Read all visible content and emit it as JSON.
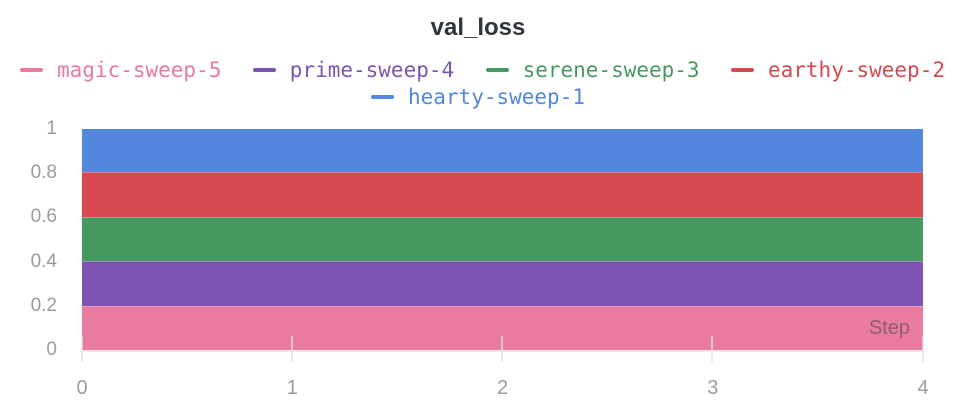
{
  "title": "val_loss",
  "legend": {
    "rows": [
      [
        {
          "label": "magic-sweep-5",
          "color": "#E87B9F"
        },
        {
          "label": "prime-sweep-4",
          "color": "#7D54B2"
        },
        {
          "label": "serene-sweep-3",
          "color": "#479A5F"
        },
        {
          "label": "earthy-sweep-2",
          "color": "#D5494F"
        }
      ],
      [
        {
          "label": "hearty-sweep-1",
          "color": "#5387DD"
        }
      ]
    ]
  },
  "chart_data": {
    "type": "area",
    "stacked": true,
    "title": "val_loss",
    "xlabel": "Step",
    "ylabel": "",
    "x_range": [
      0,
      4
    ],
    "ylim": [
      0,
      1
    ],
    "grid": false,
    "legend_position": "top",
    "x": [
      0,
      1,
      2,
      3,
      4
    ],
    "series": [
      {
        "name": "hearty-sweep-1",
        "color": "#5387DD",
        "values": [
          0.2,
          0.2,
          0.2,
          0.2,
          0.2
        ],
        "stacked_band": [
          0.8,
          1.0
        ]
      },
      {
        "name": "earthy-sweep-2",
        "color": "#D5494F",
        "values": [
          0.2,
          0.2,
          0.2,
          0.2,
          0.2
        ],
        "stacked_band": [
          0.6,
          0.8
        ]
      },
      {
        "name": "serene-sweep-3",
        "color": "#479A5F",
        "values": [
          0.2,
          0.2,
          0.2,
          0.2,
          0.2
        ],
        "stacked_band": [
          0.4,
          0.6
        ]
      },
      {
        "name": "prime-sweep-4",
        "color": "#7D54B2",
        "values": [
          0.2,
          0.2,
          0.2,
          0.2,
          0.2
        ],
        "stacked_band": [
          0.2,
          0.4
        ]
      },
      {
        "name": "magic-sweep-5",
        "color": "#E87B9F",
        "values": [
          0.2,
          0.2,
          0.2,
          0.2,
          0.2
        ],
        "stacked_band": [
          0.0,
          0.2
        ]
      }
    ],
    "y_ticks": [
      {
        "value": 1,
        "label": "1"
      },
      {
        "value": 0.8,
        "label": "0.8"
      },
      {
        "value": 0.6,
        "label": "0.6"
      },
      {
        "value": 0.4,
        "label": "0.4"
      },
      {
        "value": 0.2,
        "label": "0.2"
      },
      {
        "value": 0,
        "label": "0"
      }
    ],
    "x_ticks": [
      {
        "value": 0,
        "label": "0"
      },
      {
        "value": 1,
        "label": "1"
      },
      {
        "value": 2,
        "label": "2"
      },
      {
        "value": 3,
        "label": "3"
      },
      {
        "value": 4,
        "label": "4"
      }
    ]
  }
}
